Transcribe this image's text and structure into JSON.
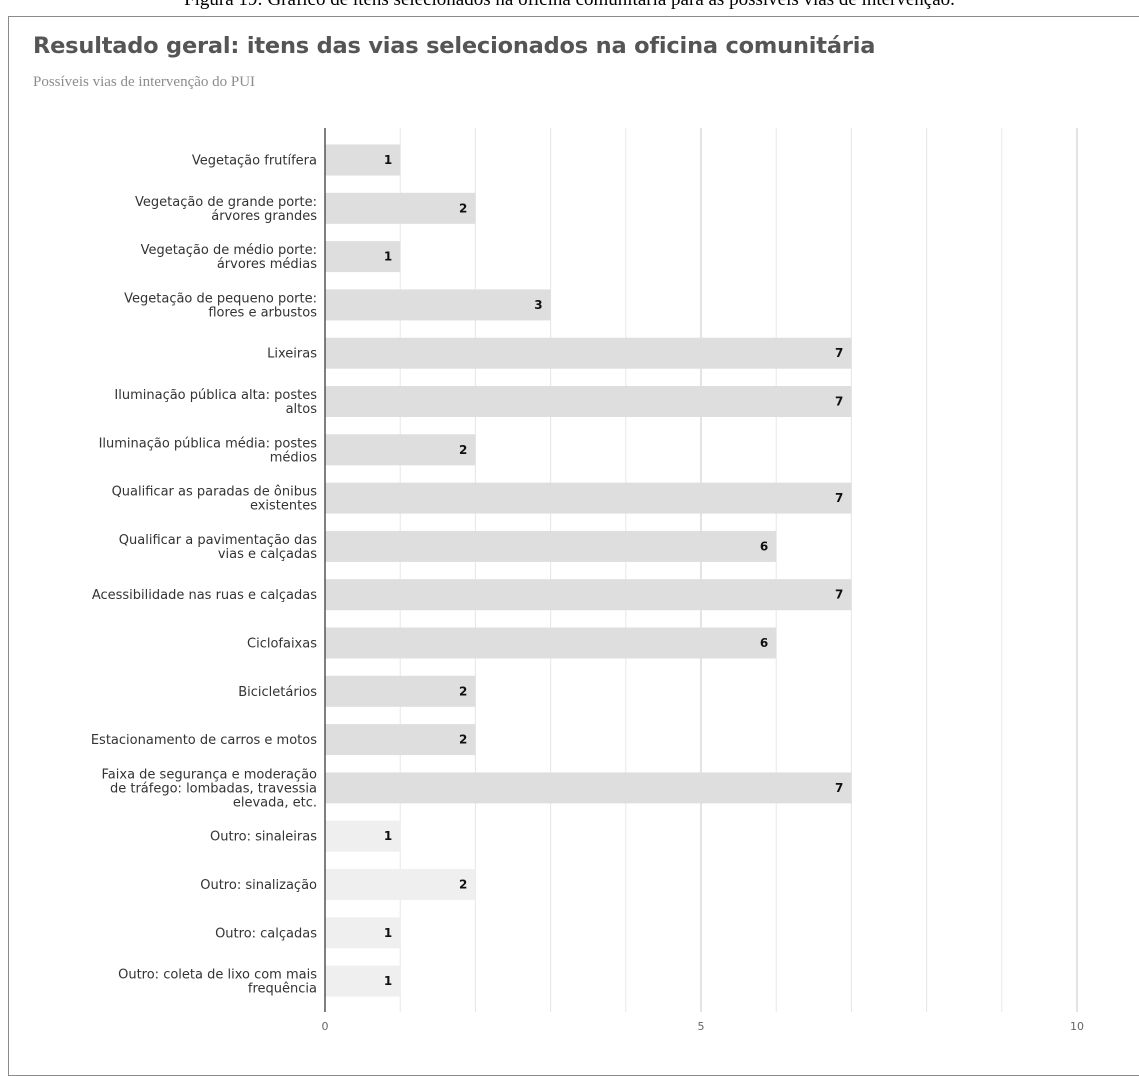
{
  "caption": "Figura 19: Gráfico de itens selecionados na oficina comunitária para as possíveis vias de intervenção.",
  "chart_data": {
    "type": "bar",
    "orientation": "horizontal",
    "title": "Resultado geral: itens das vias selecionados na oficina comunitária",
    "subtitle": "Possíveis vias de intervenção do PUI",
    "categories": [
      "Vegetação frutífera",
      "Vegetação de grande porte: árvores grandes",
      "Vegetação de médio porte: árvores médias",
      "Vegetação de pequeno porte: flores e arbustos",
      "Lixeiras",
      "Iluminação pública alta: postes altos",
      "Iluminação pública média: postes médios",
      "Qualificar as paradas de ônibus existentes",
      "Qualificar a pavimentação das vias e calçadas",
      "Acessibilidade nas ruas e calçadas",
      "Ciclofaixas",
      "Bicicletários",
      "Estacionamento de carros e motos",
      "Faixa de segurança e moderação de tráfego: lombadas, travessia elevada, etc.",
      "Outro: sinaleiras",
      "Outro: sinalização",
      "Outro: calçadas",
      "Outro: coleta de lixo com mais frequência"
    ],
    "category_lines": [
      [
        "Vegetação frutífera"
      ],
      [
        "Vegetação de grande porte:",
        "árvores grandes"
      ],
      [
        "Vegetação de médio porte:",
        "árvores médias"
      ],
      [
        "Vegetação de pequeno porte:",
        "flores e arbustos"
      ],
      [
        "Lixeiras"
      ],
      [
        "Iluminação pública alta: postes",
        "altos"
      ],
      [
        "Iluminação pública média: postes",
        "médios"
      ],
      [
        "Qualificar as paradas de ônibus",
        "existentes"
      ],
      [
        "Qualificar a pavimentação das",
        "vias e calçadas"
      ],
      [
        "Acessibilidade nas ruas e calçadas"
      ],
      [
        "Ciclofaixas"
      ],
      [
        "Bicicletários"
      ],
      [
        "Estacionamento de carros e motos"
      ],
      [
        "Faixa de segurança e moderação",
        "de tráfego: lombadas, travessia",
        "elevada, etc."
      ],
      [
        "Outro: sinaleiras"
      ],
      [
        "Outro: sinalização"
      ],
      [
        "Outro: calçadas"
      ],
      [
        "Outro: coleta de lixo com mais",
        "frequência"
      ]
    ],
    "values": [
      1,
      2,
      1,
      3,
      7,
      7,
      2,
      7,
      6,
      7,
      6,
      2,
      2,
      7,
      1,
      2,
      1,
      1
    ],
    "bar_colors": [
      "#dedede",
      "#dedede",
      "#dedede",
      "#dedede",
      "#dedede",
      "#dedede",
      "#dedede",
      "#dedede",
      "#dedede",
      "#dedede",
      "#dedede",
      "#dedede",
      "#dedede",
      "#dedede",
      "#efefef",
      "#efefef",
      "#efefef",
      "#efefef"
    ],
    "xlim": [
      0,
      10
    ],
    "x_ticks": [
      0,
      5,
      10
    ],
    "grid": true,
    "xlabel": "",
    "ylabel": ""
  }
}
